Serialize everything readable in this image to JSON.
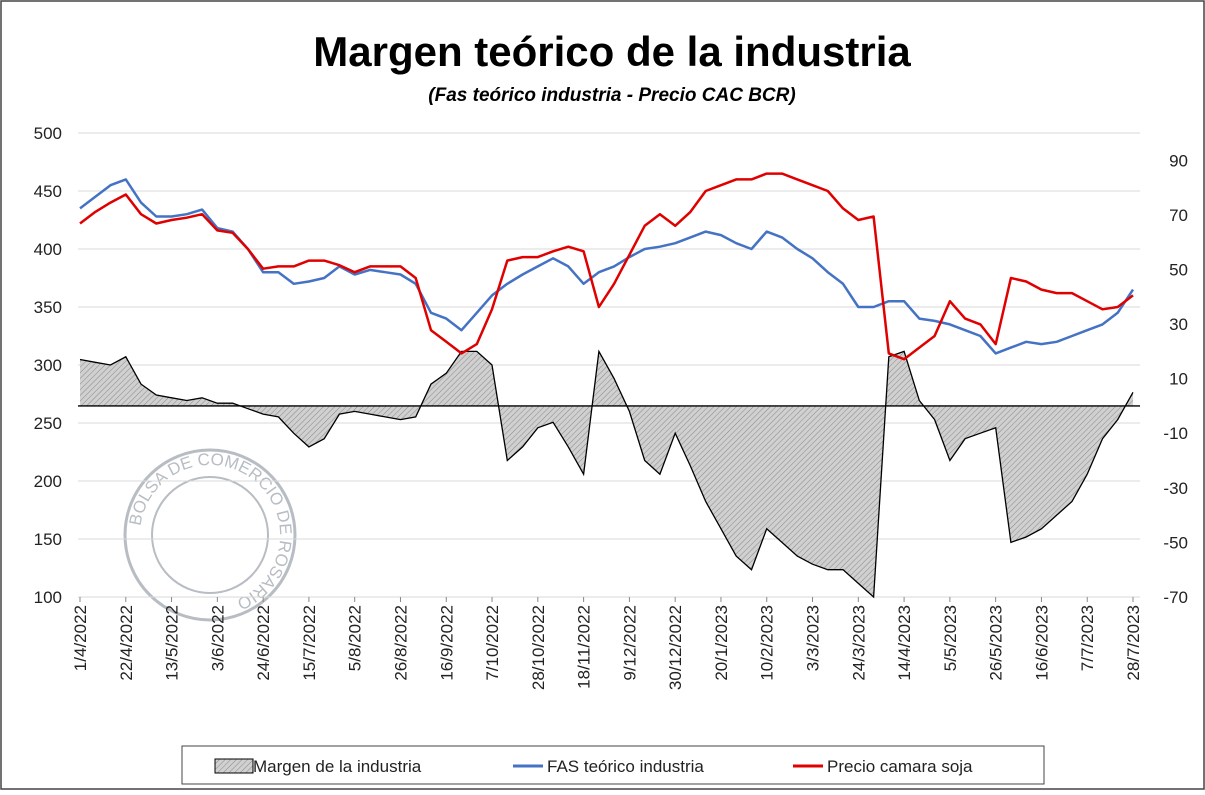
{
  "chart_data": {
    "type": "line",
    "title": "Margen teórico de la industria",
    "subtitle": "(Fas teórico industria - Precio CAC BCR)",
    "watermark": "BOLSA DE COMERCIO DE ROSARIO",
    "categories": [
      "1/4/2022",
      null,
      null,
      "22/4/2022",
      null,
      null,
      "13/5/2022",
      null,
      null,
      "3/6/2022",
      null,
      null,
      "24/6/2022",
      null,
      null,
      "15/7/2022",
      null,
      null,
      "5/8/2022",
      null,
      null,
      "26/8/2022",
      null,
      null,
      "16/9/2022",
      null,
      null,
      "7/10/2022",
      null,
      null,
      "28/10/2022",
      null,
      null,
      "18/11/2022",
      null,
      null,
      "9/12/2022",
      null,
      null,
      "30/12/2022",
      null,
      null,
      "20/1/2023",
      null,
      null,
      "10/2/2023",
      null,
      null,
      "3/3/2023",
      null,
      null,
      "24/3/2023",
      null,
      null,
      "14/4/2023",
      null,
      null,
      "5/5/2023",
      null,
      null,
      "26/5/2023",
      null,
      null,
      "16/6/2023",
      null,
      null,
      "7/7/2023",
      null,
      null,
      "28/7/2023"
    ],
    "series": [
      {
        "name": "Margen de la industria",
        "color": "#c8c8c8",
        "axis": "y2",
        "fill": "area",
        "values": [
          17,
          16,
          15,
          18,
          8,
          4,
          3,
          2,
          3,
          1,
          1,
          -1,
          -3,
          -4,
          -10,
          -15,
          -12,
          -3,
          -2,
          -3,
          -4,
          -5,
          -4,
          8,
          12,
          20,
          20,
          15,
          -20,
          -15,
          -8,
          -6,
          -15,
          -25,
          20,
          10,
          -2,
          -20,
          -25,
          -10,
          -22,
          -35,
          -45,
          -55,
          -60,
          -45,
          -50,
          -55,
          -58,
          -60,
          -60,
          -65,
          -70,
          18,
          20,
          2,
          -5,
          -20,
          -12,
          -10,
          -8,
          -50,
          -48,
          -45,
          -40,
          -35,
          -25,
          -12,
          -5,
          5
        ]
      },
      {
        "name": "FAS teórico industria",
        "color": "#4472c4",
        "values": [
          435,
          445,
          455,
          460,
          440,
          428,
          428,
          430,
          434,
          418,
          415,
          400,
          380,
          380,
          370,
          372,
          375,
          385,
          378,
          382,
          380,
          378,
          370,
          345,
          340,
          330,
          345,
          360,
          370,
          378,
          385,
          392,
          385,
          370,
          380,
          385,
          393,
          400,
          402,
          405,
          410,
          415,
          412,
          405,
          400,
          415,
          410,
          400,
          392,
          380,
          370,
          350,
          350,
          355,
          355,
          340,
          338,
          335,
          330,
          325,
          310,
          315,
          320,
          318,
          320,
          325,
          330,
          335,
          345,
          365
        ]
      },
      {
        "name": "Precio camara soja",
        "color": "#e00000",
        "values": [
          422,
          432,
          440,
          447,
          430,
          422,
          425,
          427,
          430,
          416,
          414,
          400,
          383,
          385,
          385,
          390,
          390,
          386,
          380,
          385,
          385,
          385,
          375,
          330,
          320,
          310,
          318,
          348,
          390,
          393,
          393,
          398,
          402,
          398,
          350,
          370,
          395,
          420,
          430,
          420,
          432,
          450,
          455,
          460,
          460,
          465,
          465,
          460,
          455,
          450,
          435,
          425,
          428,
          310,
          305,
          315,
          325,
          355,
          340,
          335,
          318,
          375,
          372,
          365,
          362,
          362,
          355,
          348,
          350,
          360
        ]
      }
    ],
    "ylim": [
      100,
      500
    ],
    "yticks": [
      100,
      150,
      200,
      250,
      300,
      350,
      400,
      450,
      500
    ],
    "y2lim": [
      -70,
      100
    ],
    "y2ticks": [
      -70,
      -50,
      -30,
      -10,
      10,
      30,
      50,
      70,
      90
    ],
    "grid": true,
    "legend": "bottom"
  }
}
